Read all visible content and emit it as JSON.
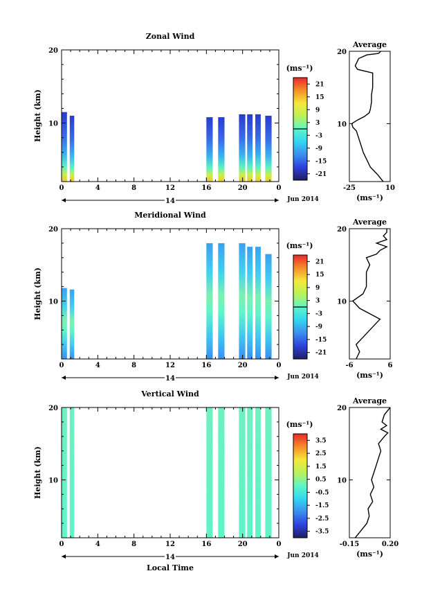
{
  "chart_data": [
    {
      "type": "heatmap",
      "title": "Zonal Wind",
      "ylabel": "Height (km)",
      "yticks": [
        "20",
        "10"
      ],
      "ylim": [
        2,
        20
      ],
      "xticks": [
        "0",
        "4",
        "8",
        "12",
        "16",
        "20",
        "0"
      ],
      "xlim": [
        0,
        24
      ],
      "day_label": "14",
      "date_label": "Jun 2014",
      "colorbar": {
        "unit": "(ms⁻¹)",
        "ticks": [
          "21",
          "15",
          "9",
          "3",
          "-3",
          "-9",
          "-15",
          "-21"
        ],
        "range": [
          -24,
          24
        ],
        "marker": 0
      },
      "data_blocks": [
        {
          "t0": 0.0,
          "t1": 0.6,
          "h0": 2.0,
          "h1": 11.5
        },
        {
          "t0": 0.9,
          "t1": 1.4,
          "h0": 2.0,
          "h1": 11.0
        },
        {
          "t0": 16.0,
          "t1": 16.7,
          "h0": 2.0,
          "h1": 10.8
        },
        {
          "t0": 17.3,
          "t1": 18.0,
          "h0": 2.0,
          "h1": 10.8
        },
        {
          "t0": 19.6,
          "t1": 20.3,
          "h0": 2.0,
          "h1": 11.2
        },
        {
          "t0": 20.5,
          "t1": 21.1,
          "h0": 2.0,
          "h1": 11.2
        },
        {
          "t0": 21.4,
          "t1": 22.0,
          "h0": 2.0,
          "h1": 11.2
        },
        {
          "t0": 22.5,
          "t1": 23.2,
          "h0": 2.0,
          "h1": 11.0
        }
      ],
      "average": {
        "title": "Average",
        "xticks": [
          "-25",
          "10"
        ],
        "xlim": [
          -25,
          10
        ],
        "yticks": [
          "20",
          "10"
        ],
        "ylim": [
          2,
          20
        ],
        "unit": "(ms⁻¹)",
        "profile": [
          [
            2,
            4
          ],
          [
            3,
            -1
          ],
          [
            4,
            -7
          ],
          [
            5,
            -10
          ],
          [
            6,
            -13
          ],
          [
            7,
            -15
          ],
          [
            8,
            -17
          ],
          [
            9,
            -19
          ],
          [
            9.5,
            -22
          ],
          [
            10,
            -23
          ],
          [
            10.5,
            -18
          ],
          [
            11,
            -12
          ],
          [
            11.5,
            -8
          ],
          [
            12,
            -7
          ],
          [
            13,
            -6
          ],
          [
            14,
            -6
          ],
          [
            15,
            -5
          ],
          [
            16,
            -5
          ],
          [
            17,
            -5
          ],
          [
            17.5,
            -18
          ],
          [
            18,
            -20
          ],
          [
            19,
            -17
          ],
          [
            19.5,
            -10
          ],
          [
            19.7,
            0
          ],
          [
            20,
            2
          ]
        ]
      }
    },
    {
      "type": "heatmap",
      "title": "Meridional Wind",
      "ylabel": "Height (km)",
      "yticks": [
        "20",
        "10"
      ],
      "ylim": [
        2,
        20
      ],
      "xticks": [
        "0",
        "4",
        "8",
        "12",
        "16",
        "20",
        "0"
      ],
      "xlim": [
        0,
        24
      ],
      "day_label": "14",
      "date_label": "Jun 2014",
      "colorbar": {
        "unit": "(ms⁻¹)",
        "ticks": [
          "21",
          "15",
          "9",
          "3",
          "-3",
          "-9",
          "-15",
          "-21"
        ],
        "range": [
          -24,
          24
        ],
        "marker": 0
      },
      "data_blocks": [
        {
          "t0": 0.0,
          "t1": 0.6,
          "h0": 2.0,
          "h1": 11.8
        },
        {
          "t0": 0.9,
          "t1": 1.4,
          "h0": 2.0,
          "h1": 11.6
        },
        {
          "t0": 16.0,
          "t1": 16.7,
          "h0": 2.0,
          "h1": 18.0
        },
        {
          "t0": 17.3,
          "t1": 18.0,
          "h0": 2.0,
          "h1": 18.0
        },
        {
          "t0": 19.6,
          "t1": 20.3,
          "h0": 2.0,
          "h1": 18.0
        },
        {
          "t0": 20.5,
          "t1": 21.1,
          "h0": 2.0,
          "h1": 17.5
        },
        {
          "t0": 21.4,
          "t1": 22.0,
          "h0": 2.0,
          "h1": 17.5
        },
        {
          "t0": 22.5,
          "t1": 23.2,
          "h0": 2.0,
          "h1": 16.5
        }
      ],
      "average": {
        "title": "Average",
        "xticks": [
          "-6",
          "6"
        ],
        "xlim": [
          -6,
          6
        ],
        "yticks": [
          "20",
          "10"
        ],
        "ylim": [
          2,
          20
        ],
        "unit": "(ms⁻¹)",
        "profile": [
          [
            2,
            -4
          ],
          [
            3,
            -3
          ],
          [
            4,
            -4
          ],
          [
            5,
            -2
          ],
          [
            6,
            0
          ],
          [
            7,
            2
          ],
          [
            7.5,
            3
          ],
          [
            8,
            1
          ],
          [
            9,
            -3
          ],
          [
            10,
            -5
          ],
          [
            11,
            -2
          ],
          [
            12,
            -1
          ],
          [
            13,
            -1
          ],
          [
            14,
            -1
          ],
          [
            15,
            0
          ],
          [
            16,
            -1
          ],
          [
            16.5,
            2
          ],
          [
            17,
            3
          ],
          [
            17.5,
            5
          ],
          [
            18,
            2
          ],
          [
            18.5,
            5
          ],
          [
            19,
            4
          ],
          [
            19.5,
            5
          ],
          [
            20,
            5
          ]
        ]
      }
    },
    {
      "type": "heatmap",
      "title": "Vertical Wind",
      "ylabel": "Height (km)",
      "yticks": [
        "20",
        "10"
      ],
      "ylim": [
        2,
        20
      ],
      "xticks": [
        "0",
        "4",
        "8",
        "12",
        "16",
        "20",
        "0"
      ],
      "xlim": [
        0,
        24
      ],
      "xlabel": "Local Time",
      "day_label": "14",
      "date_label": "Jun 2014",
      "colorbar": {
        "unit": "(ms⁻¹)",
        "ticks": [
          "3.5",
          "2.5",
          "1.5",
          "0.5",
          "-0.5",
          "-1.5",
          "-2.5",
          "-3.5"
        ],
        "range": [
          -4,
          4
        ]
      },
      "data_blocks": [
        {
          "t0": 0.0,
          "t1": 0.6,
          "h0": 2.0,
          "h1": 20.0
        },
        {
          "t0": 0.9,
          "t1": 1.4,
          "h0": 2.0,
          "h1": 20.0
        },
        {
          "t0": 16.0,
          "t1": 16.7,
          "h0": 2.0,
          "h1": 20.0
        },
        {
          "t0": 17.3,
          "t1": 18.0,
          "h0": 2.0,
          "h1": 20.0
        },
        {
          "t0": 19.6,
          "t1": 20.3,
          "h0": 2.0,
          "h1": 20.0
        },
        {
          "t0": 20.5,
          "t1": 21.1,
          "h0": 2.0,
          "h1": 20.0
        },
        {
          "t0": 21.4,
          "t1": 22.0,
          "h0": 2.0,
          "h1": 20.0
        },
        {
          "t0": 22.5,
          "t1": 23.2,
          "h0": 2.0,
          "h1": 20.0
        }
      ],
      "average": {
        "title": "Average",
        "xticks": [
          "-0.15",
          "0.20"
        ],
        "xlim": [
          -0.15,
          0.2
        ],
        "yticks": [
          "20",
          "10"
        ],
        "ylim": [
          2,
          20
        ],
        "unit": "(ms⁻¹)",
        "profile": [
          [
            2,
            -0.1
          ],
          [
            3,
            -0.05
          ],
          [
            4,
            0.0
          ],
          [
            5,
            0.02
          ],
          [
            6,
            0.01
          ],
          [
            7,
            0.05
          ],
          [
            8,
            0.03
          ],
          [
            9,
            0.06
          ],
          [
            10,
            0.04
          ],
          [
            11,
            0.06
          ],
          [
            12,
            0.08
          ],
          [
            13,
            0.1
          ],
          [
            14,
            0.12
          ],
          [
            15,
            0.1
          ],
          [
            16,
            0.15
          ],
          [
            16.5,
            0.18
          ],
          [
            17,
            0.12
          ],
          [
            17.5,
            0.17
          ],
          [
            18,
            0.13
          ],
          [
            19,
            0.15
          ],
          [
            20,
            0.2
          ]
        ]
      }
    }
  ]
}
